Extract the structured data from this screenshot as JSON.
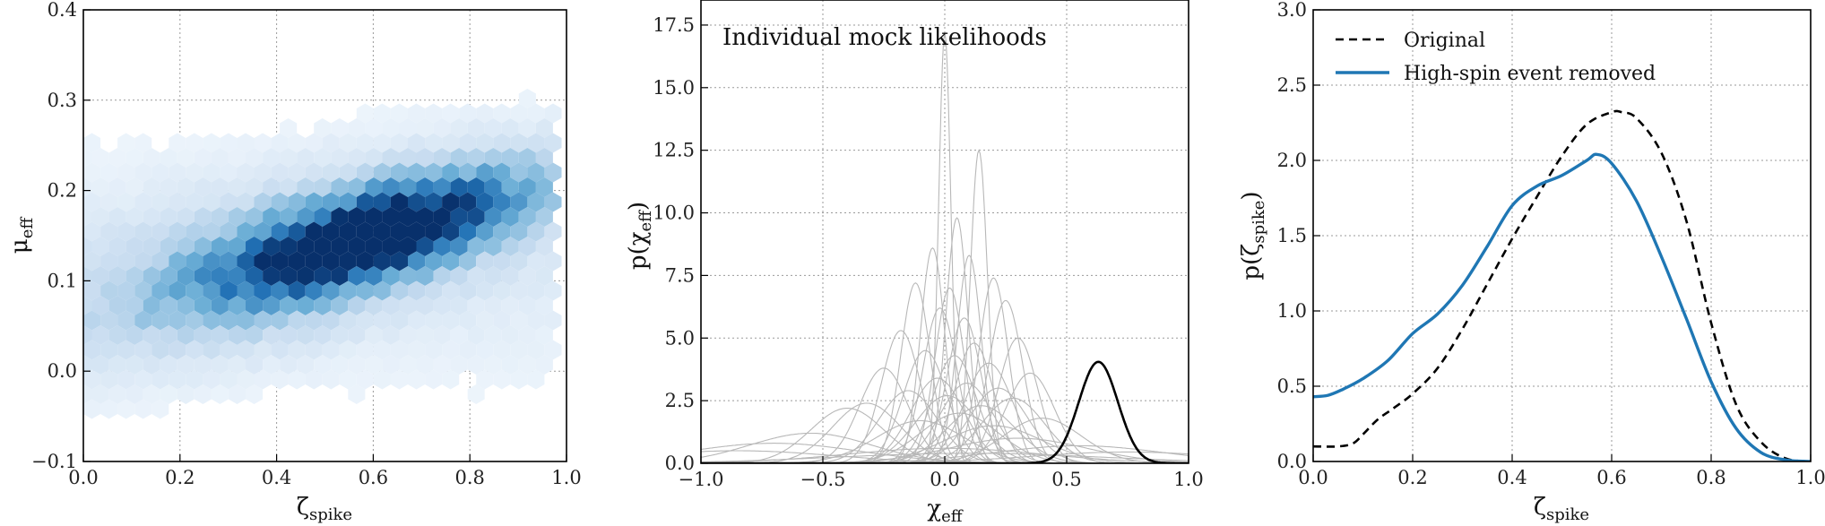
{
  "chart_data": [
    {
      "type": "heatmap",
      "title": "",
      "xlabel": "ζspike",
      "ylabel": "μeff",
      "xlim": [
        0.0,
        1.0
      ],
      "ylim": [
        -0.1,
        0.4
      ],
      "xticks": [
        "0.0",
        "0.2",
        "0.4",
        "0.6",
        "0.8",
        "1.0"
      ],
      "yticks": [
        "−0.1",
        "0.0",
        "0.1",
        "0.2",
        "0.3",
        "0.4"
      ],
      "grid": true,
      "colormap": [
        "#f7fbff",
        "#c6dbef",
        "#6baed6",
        "#2171b5",
        "#08306b"
      ],
      "density_center": [
        0.6,
        0.14
      ],
      "density_trend": "positive correlation: μeff rises from about 0.07 at ζspike 0.0 to about 0.18 at ζspike 0.8"
    },
    {
      "type": "line",
      "title": "",
      "xlabel": "χeff",
      "ylabel": "p(χeff)",
      "xlim": [
        -1.0,
        1.0
      ],
      "ylim": [
        0.0,
        18.5
      ],
      "xticks": [
        "−1.0",
        "−0.5",
        "0.0",
        "0.5",
        "1.0"
      ],
      "yticks": [
        "0.0",
        "2.5",
        "5.0",
        "7.5",
        "10.0",
        "12.5",
        "15.0",
        "17.5"
      ],
      "grid": true,
      "annotation": "Individual mock likelihoods",
      "mock_likelihoods": [
        {
          "mu": 0.0,
          "sigma": 0.025,
          "peak": 17.2
        },
        {
          "mu": 0.14,
          "sigma": 0.035,
          "peak": 12.5
        },
        {
          "mu": 0.05,
          "sigma": 0.045,
          "peak": 9.8
        },
        {
          "mu": -0.05,
          "sigma": 0.05,
          "peak": 8.6
        },
        {
          "mu": 0.1,
          "sigma": 0.05,
          "peak": 8.3
        },
        {
          "mu": 0.2,
          "sigma": 0.06,
          "peak": 7.4
        },
        {
          "mu": -0.12,
          "sigma": 0.06,
          "peak": 7.2
        },
        {
          "mu": 0.02,
          "sigma": 0.06,
          "peak": 7.0
        },
        {
          "mu": 0.25,
          "sigma": 0.07,
          "peak": 6.5
        },
        {
          "mu": -0.02,
          "sigma": 0.07,
          "peak": 6.2
        },
        {
          "mu": 0.08,
          "sigma": 0.07,
          "peak": 5.8
        },
        {
          "mu": -0.18,
          "sigma": 0.08,
          "peak": 5.3
        },
        {
          "mu": 0.3,
          "sigma": 0.08,
          "peak": 5.0
        },
        {
          "mu": 0.12,
          "sigma": 0.08,
          "peak": 4.8
        },
        {
          "mu": -0.08,
          "sigma": 0.09,
          "peak": 4.5
        },
        {
          "mu": 0.04,
          "sigma": 0.09,
          "peak": 4.3
        },
        {
          "mu": 0.18,
          "sigma": 0.1,
          "peak": 4.0
        },
        {
          "mu": -0.25,
          "sigma": 0.1,
          "peak": 3.8
        },
        {
          "mu": 0.35,
          "sigma": 0.1,
          "peak": 3.6
        },
        {
          "mu": -0.03,
          "sigma": 0.11,
          "peak": 3.4
        },
        {
          "mu": 0.09,
          "sigma": 0.11,
          "peak": 3.2
        },
        {
          "mu": 0.22,
          "sigma": 0.12,
          "peak": 3.0
        },
        {
          "mu": -0.15,
          "sigma": 0.12,
          "peak": 2.9
        },
        {
          "mu": 0.01,
          "sigma": 0.13,
          "peak": 2.7
        },
        {
          "mu": 0.28,
          "sigma": 0.13,
          "peak": 2.6
        },
        {
          "mu": -0.32,
          "sigma": 0.14,
          "peak": 2.4
        },
        {
          "mu": 0.15,
          "sigma": 0.14,
          "peak": 2.3
        },
        {
          "mu": -0.4,
          "sigma": 0.15,
          "peak": 2.2
        },
        {
          "mu": 0.06,
          "sigma": 0.16,
          "peak": 2.0
        },
        {
          "mu": 0.4,
          "sigma": 0.16,
          "peak": 1.8
        },
        {
          "mu": -0.1,
          "sigma": 0.18,
          "peak": 1.7
        },
        {
          "mu": 0.2,
          "sigma": 0.2,
          "peak": 1.5
        },
        {
          "mu": -0.55,
          "sigma": 0.25,
          "peak": 1.2
        },
        {
          "mu": 0.3,
          "sigma": 0.28,
          "peak": 1.0
        },
        {
          "mu": -0.7,
          "sigma": 0.35,
          "peak": 0.8
        },
        {
          "mu": 0.55,
          "sigma": 0.35,
          "peak": 0.7
        },
        {
          "mu": 0.0,
          "sigma": 0.4,
          "peak": 0.6
        },
        {
          "mu": -0.85,
          "sigma": 0.4,
          "peak": 0.5
        },
        {
          "mu": 0.75,
          "sigma": 0.4,
          "peak": 0.45
        },
        {
          "mu": 0.1,
          "sigma": 0.55,
          "peak": 0.4
        }
      ],
      "highlighted_likelihood": {
        "mu": 0.63,
        "sigma": 0.08,
        "peak": 4.05
      },
      "colors": {
        "mock": "#b8b8b8",
        "highlight": "#000000"
      }
    },
    {
      "type": "line",
      "title": "",
      "xlabel": "ζspike",
      "ylabel": "p(ζspike)",
      "xlim": [
        0.0,
        1.0
      ],
      "ylim": [
        0.0,
        3.0
      ],
      "xticks": [
        "0.0",
        "0.2",
        "0.4",
        "0.6",
        "0.8",
        "1.0"
      ],
      "yticks": [
        "0.0",
        "0.5",
        "1.0",
        "1.5",
        "2.0",
        "2.5",
        "3.0"
      ],
      "grid": true,
      "legend_position": "top-left",
      "series": [
        {
          "name": "Original",
          "style": "dashed",
          "color": "#000000",
          "x": [
            0.0,
            0.05,
            0.08,
            0.1,
            0.13,
            0.16,
            0.2,
            0.25,
            0.3,
            0.35,
            0.4,
            0.45,
            0.5,
            0.55,
            0.6,
            0.62,
            0.65,
            0.7,
            0.75,
            0.8,
            0.85,
            0.9,
            0.95,
            1.0
          ],
          "y": [
            0.1,
            0.1,
            0.12,
            0.18,
            0.28,
            0.35,
            0.45,
            0.62,
            0.88,
            1.18,
            1.48,
            1.76,
            2.03,
            2.24,
            2.32,
            2.32,
            2.28,
            2.05,
            1.6,
            0.92,
            0.38,
            0.13,
            0.02,
            0.0
          ]
        },
        {
          "name": "High-spin event removed",
          "style": "solid",
          "color": "#1f77b4",
          "x": [
            0.0,
            0.03,
            0.06,
            0.1,
            0.15,
            0.2,
            0.25,
            0.3,
            0.35,
            0.4,
            0.45,
            0.5,
            0.55,
            0.57,
            0.6,
            0.65,
            0.7,
            0.75,
            0.8,
            0.85,
            0.9,
            0.95,
            1.0
          ],
          "y": [
            0.43,
            0.44,
            0.48,
            0.55,
            0.67,
            0.85,
            0.98,
            1.17,
            1.43,
            1.7,
            1.83,
            1.9,
            2.0,
            2.04,
            1.98,
            1.73,
            1.36,
            0.95,
            0.53,
            0.22,
            0.06,
            0.01,
            0.0
          ]
        }
      ]
    }
  ]
}
